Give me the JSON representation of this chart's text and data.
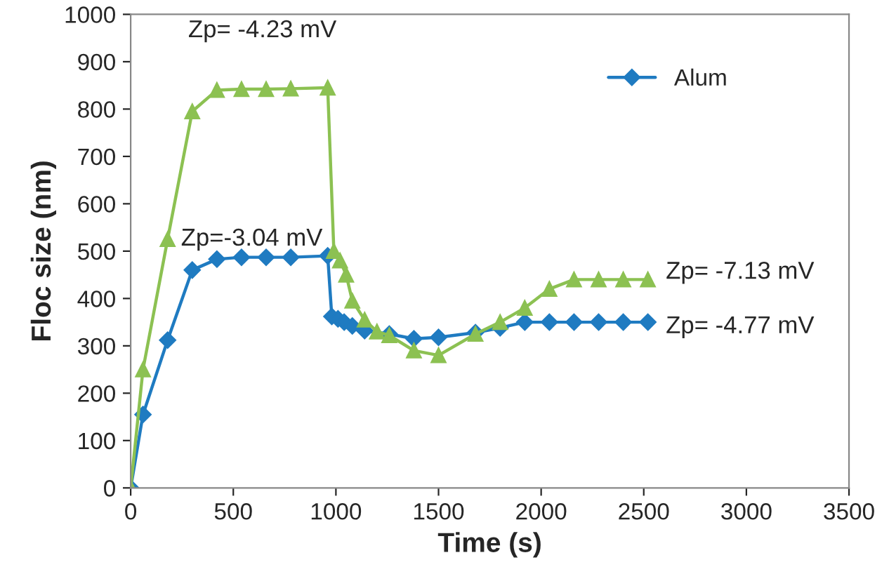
{
  "chart_data": {
    "type": "line",
    "xlabel": "Time (s)",
    "ylabel": "Floc size (nm)",
    "xlim": [
      0,
      3500
    ],
    "xticks": [
      0,
      500,
      1000,
      1500,
      2000,
      2500,
      3000,
      3500
    ],
    "ylim": [
      0,
      1000
    ],
    "yticks": [
      0,
      100,
      200,
      300,
      400,
      500,
      600,
      700,
      800,
      900,
      1000
    ],
    "grid": false,
    "legend": "top right",
    "series": [
      {
        "name": "Alum",
        "color": "#1f7bc1",
        "marker": "diamond",
        "x": [
          0,
          60,
          180,
          300,
          420,
          540,
          660,
          780,
          960,
          980,
          1010,
          1040,
          1080,
          1140,
          1260,
          1380,
          1500,
          1680,
          1800,
          1920,
          2040,
          2160,
          2280,
          2400,
          2520
        ],
        "values": [
          0,
          155,
          312,
          460,
          483,
          487,
          487,
          487,
          490,
          362,
          357,
          350,
          342,
          332,
          325,
          315,
          318,
          328,
          338,
          350,
          350,
          350,
          350,
          350,
          350
        ]
      },
      {
        "color": "#8cc152",
        "marker": "triangle",
        "x": [
          0,
          60,
          180,
          300,
          420,
          540,
          660,
          780,
          960,
          990,
          1020,
          1050,
          1080,
          1140,
          1200,
          1260,
          1380,
          1500,
          1680,
          1800,
          1920,
          2040,
          2160,
          2280,
          2400,
          2520
        ],
        "values": [
          0,
          250,
          525,
          795,
          840,
          842,
          842,
          843,
          845,
          500,
          480,
          450,
          395,
          355,
          330,
          322,
          290,
          280,
          325,
          350,
          380,
          420,
          440,
          440,
          440,
          440
        ]
      }
    ],
    "annotations": [
      "Zp= -4.23 mV",
      "Zp=-3.04 mV",
      "Zp= -7.13 mV",
      "Zp= -4.77 mV"
    ]
  }
}
